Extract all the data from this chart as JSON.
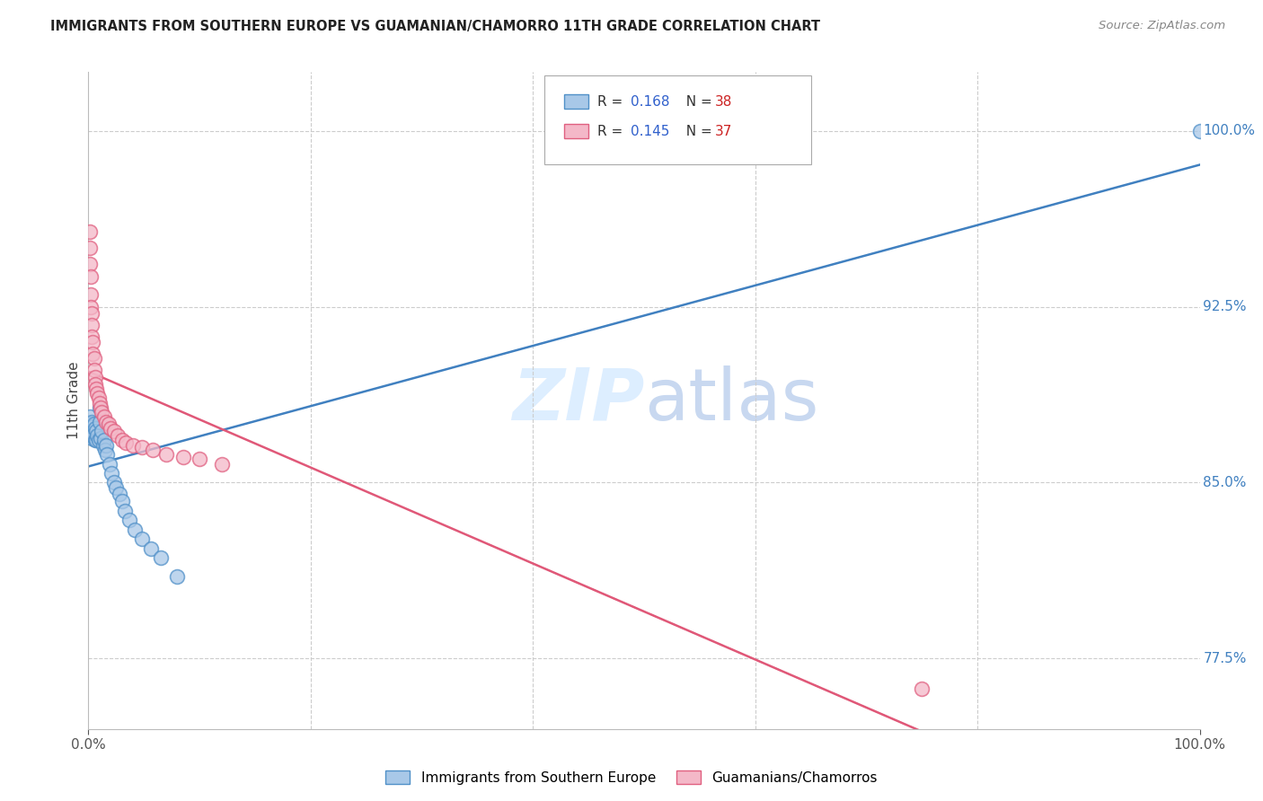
{
  "title": "IMMIGRANTS FROM SOUTHERN EUROPE VS GUAMANIAN/CHAMORRO 11TH GRADE CORRELATION CHART",
  "source": "Source: ZipAtlas.com",
  "ylabel": "11th Grade",
  "blue_label": "Immigrants from Southern Europe",
  "pink_label": "Guamanians/Chamorros",
  "blue_R": "0.168",
  "blue_N": "38",
  "pink_R": "0.145",
  "pink_N": "37",
  "blue_color": "#a8c8e8",
  "pink_color": "#f4b8c8",
  "blue_edge_color": "#5090c8",
  "pink_edge_color": "#e06080",
  "blue_line_color": "#4080c0",
  "pink_line_color": "#e05878",
  "R_color": "#3060cc",
  "N_color": "#cc2222",
  "watermark_color": "#ddeeff",
  "grid_color": "#cccccc",
  "xlim": [
    0.0,
    1.0
  ],
  "ylim": [
    0.745,
    1.025
  ],
  "y_ticks": [
    0.775,
    0.85,
    0.925,
    1.0
  ],
  "y_tick_labels": [
    "77.5%",
    "85.0%",
    "92.5%",
    "100.0%"
  ],
  "blue_x": [
    0.001,
    0.002,
    0.002,
    0.003,
    0.003,
    0.003,
    0.004,
    0.004,
    0.005,
    0.006,
    0.006,
    0.007,
    0.007,
    0.008,
    0.009,
    0.01,
    0.01,
    0.011,
    0.012,
    0.013,
    0.014,
    0.015,
    0.016,
    0.017,
    0.019,
    0.021,
    0.023,
    0.025,
    0.028,
    0.03,
    0.033,
    0.037,
    0.042,
    0.048,
    0.056,
    0.065,
    0.08,
    1.0
  ],
  "blue_y": [
    0.878,
    0.875,
    0.872,
    0.876,
    0.872,
    0.869,
    0.874,
    0.87,
    0.875,
    0.873,
    0.868,
    0.872,
    0.868,
    0.87,
    0.868,
    0.882,
    0.876,
    0.869,
    0.872,
    0.866,
    0.868,
    0.864,
    0.866,
    0.862,
    0.858,
    0.854,
    0.85,
    0.848,
    0.845,
    0.842,
    0.838,
    0.834,
    0.83,
    0.826,
    0.822,
    0.818,
    0.81,
    1.0
  ],
  "pink_x": [
    0.001,
    0.001,
    0.001,
    0.002,
    0.002,
    0.002,
    0.003,
    0.003,
    0.003,
    0.004,
    0.004,
    0.005,
    0.005,
    0.006,
    0.006,
    0.007,
    0.008,
    0.009,
    0.01,
    0.011,
    0.012,
    0.014,
    0.016,
    0.018,
    0.02,
    0.023,
    0.026,
    0.03,
    0.034,
    0.04,
    0.048,
    0.058,
    0.07,
    0.085,
    0.1,
    0.12,
    0.75
  ],
  "pink_y": [
    0.957,
    0.95,
    0.943,
    0.938,
    0.93,
    0.925,
    0.922,
    0.917,
    0.912,
    0.91,
    0.905,
    0.903,
    0.898,
    0.895,
    0.892,
    0.89,
    0.888,
    0.886,
    0.884,
    0.882,
    0.88,
    0.878,
    0.876,
    0.875,
    0.873,
    0.872,
    0.87,
    0.868,
    0.867,
    0.866,
    0.865,
    0.864,
    0.862,
    0.861,
    0.86,
    0.858,
    0.762
  ]
}
